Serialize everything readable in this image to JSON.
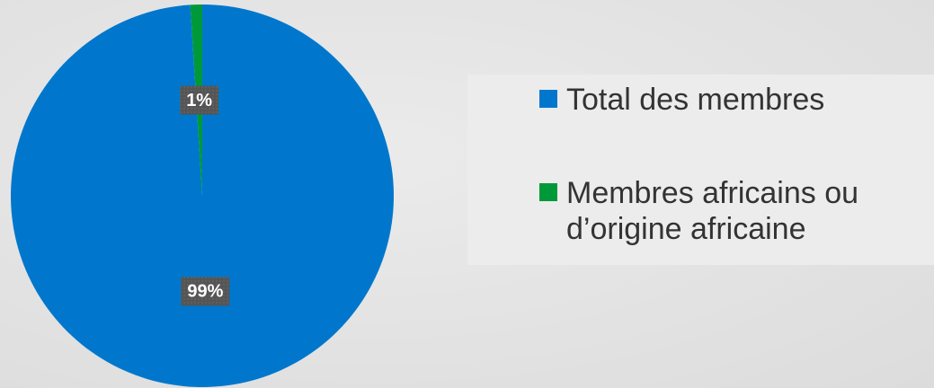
{
  "chart_data": {
    "type": "pie",
    "categories": [
      "Total des membres",
      "Membres africains ou d’origine africaine"
    ],
    "values": [
      99,
      1
    ],
    "value_labels": [
      "99%",
      "1%"
    ],
    "colors": [
      "#0077cc",
      "#00993a"
    ],
    "legend": "right"
  }
}
